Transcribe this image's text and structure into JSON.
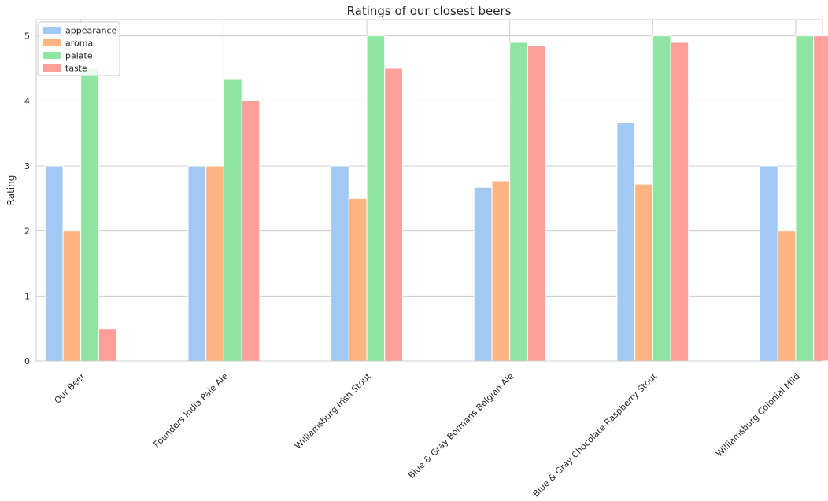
{
  "chart_data": {
    "type": "bar",
    "title": "Ratings of our closest beers",
    "xlabel": "",
    "ylabel": "Rating",
    "ylim": [
      0,
      5.25
    ],
    "yticks": [
      "0",
      "1",
      "2",
      "3",
      "4",
      "5"
    ],
    "grid": true,
    "legend_position": "top-left",
    "categories": [
      "Our Beer",
      "Founders India Pale Ale",
      "Williamsburg Irish Stout",
      "Blue & Gray Bormans Belgian Ale",
      "Blue & Gray Chocolate Raspberry Stout",
      "Williamsburg Colonial Mild"
    ],
    "series": [
      {
        "name": "appearance",
        "color": "#a1c9f4",
        "values": [
          3.0,
          3.0,
          3.0,
          2.67,
          3.67,
          3.0
        ]
      },
      {
        "name": "aroma",
        "color": "#ffb482",
        "values": [
          2.0,
          3.0,
          2.5,
          2.77,
          2.72,
          2.0
        ]
      },
      {
        "name": "palate",
        "color": "#8de5a1",
        "values": [
          4.5,
          4.33,
          5.0,
          4.9,
          5.0,
          5.0
        ]
      },
      {
        "name": "taste",
        "color": "#ff9f9b",
        "values": [
          0.5,
          4.0,
          4.5,
          4.85,
          4.9,
          5.0
        ]
      }
    ]
  }
}
